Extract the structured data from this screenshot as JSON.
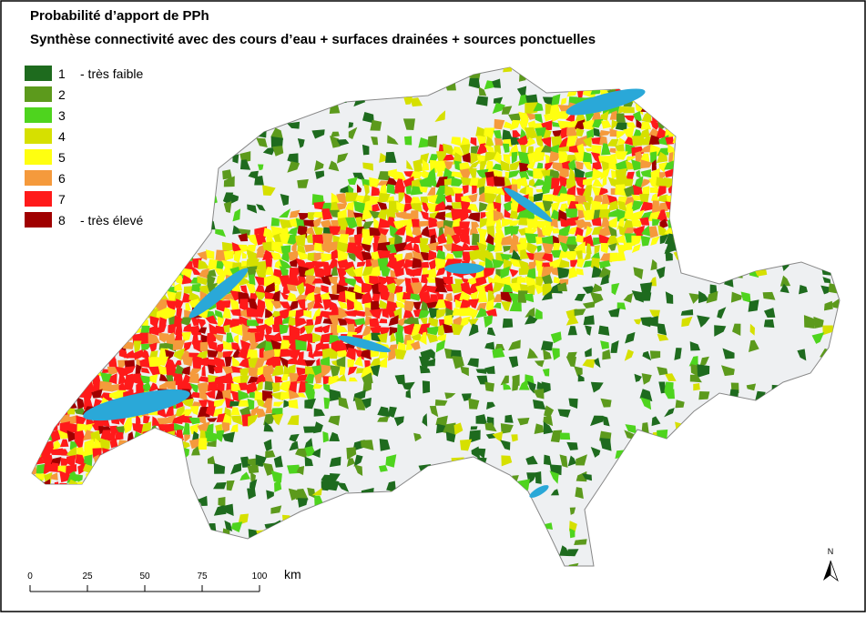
{
  "header": {
    "title": "Probabilité d’apport de PPh",
    "subtitle": "Synthèse connectivité avec des cours d’eau + surfaces drainées + sources ponctuelles"
  },
  "legend": [
    {
      "class": 1,
      "label": "-  très faible",
      "color": "#1e6b1e"
    },
    {
      "class": 2,
      "color": "#5c9a1c"
    },
    {
      "class": 3,
      "color": "#4ed41e"
    },
    {
      "class": 4,
      "color": "#d6e000"
    },
    {
      "class": 5,
      "color": "#ffff10"
    },
    {
      "class": 6,
      "color": "#f59a3c"
    },
    {
      "class": 7,
      "color": "#ff1a1a"
    },
    {
      "class": 8,
      "label": "-  très élevé",
      "color": "#a00000"
    }
  ],
  "scale_bar": {
    "ticks": [
      0,
      25,
      50,
      75,
      100
    ],
    "unit": "km"
  },
  "north_arrow": "N"
}
